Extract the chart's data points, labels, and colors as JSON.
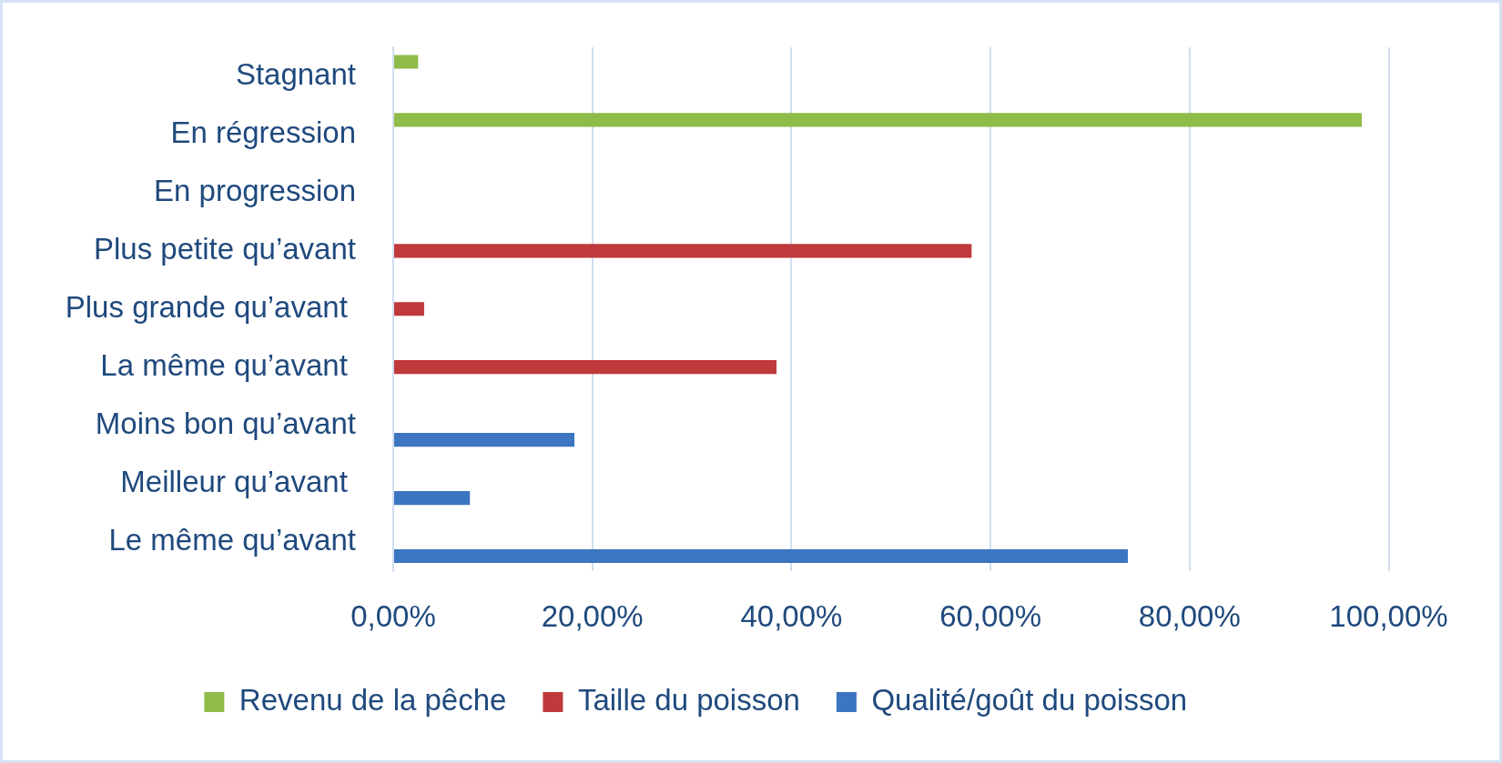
{
  "chart_data": {
    "type": "bar",
    "orientation": "horizontal",
    "categories": [
      "Stagnant",
      "En régression",
      "En progression",
      "Plus petite qu’avant",
      "Plus grande qu’avant ",
      "La même qu’avant ",
      "Moins bon qu’avant",
      "Meilleur qu’avant ",
      "Le même qu’avant"
    ],
    "series": [
      {
        "name": "Revenu de la pêche",
        "color": "#8fbb48",
        "values": [
          2.5,
          97.3,
          null,
          null,
          null,
          null,
          null,
          null,
          null
        ]
      },
      {
        "name": "Taille du poisson",
        "color": "#c0393b",
        "values": [
          null,
          null,
          null,
          58.1,
          3.1,
          38.5,
          null,
          null,
          null
        ]
      },
      {
        "name": "Qualité/goût du poisson",
        "color": "#3c75c0",
        "values": [
          null,
          null,
          null,
          null,
          null,
          null,
          18.2,
          7.7,
          73.8
        ]
      }
    ],
    "xlim": [
      0,
      100
    ],
    "xticks": [
      {
        "value": 0,
        "label": "0,00%"
      },
      {
        "value": 20,
        "label": "20,00%"
      },
      {
        "value": 40,
        "label": "40,00%"
      },
      {
        "value": 60,
        "label": "60,00%"
      },
      {
        "value": 80,
        "label": "80,00%"
      },
      {
        "value": 100,
        "label": "100,00%"
      }
    ],
    "grid": "x",
    "legend": "bottom"
  }
}
